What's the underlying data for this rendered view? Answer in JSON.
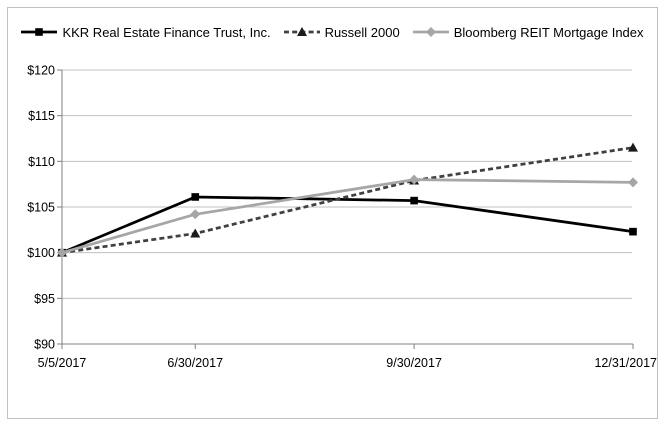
{
  "chart_data": {
    "type": "line",
    "title": "",
    "xlabel": "",
    "ylabel": "",
    "x_categories": [
      "5/5/2017",
      "6/30/2017",
      "9/30/2017",
      "12/31/2017"
    ],
    "x_day_offsets": [
      0,
      56,
      148,
      240
    ],
    "y_axis": {
      "min": 90,
      "max": 120,
      "step": 5,
      "prefix": "$"
    },
    "y_tick_labels": [
      "$90",
      "$95",
      "$100",
      "$105",
      "$110",
      "$115",
      "$120"
    ],
    "grid": true,
    "legend_position": "top",
    "series": [
      {
        "name": "KKR Real Estate Finance Trust, Inc.",
        "values": [
          100,
          106.1,
          105.7,
          102.3
        ],
        "color": "#000000",
        "marker_color": "#000000",
        "dash": "",
        "marker": "square"
      },
      {
        "name": "Russell 2000",
        "values": [
          100,
          102.1,
          107.9,
          111.5
        ],
        "color": "#404040",
        "marker_color": "#1a1a1a",
        "dash": "5 3.2",
        "marker": "triangle"
      },
      {
        "name": "Bloomberg REIT Mortgage Index",
        "values": [
          100,
          104.2,
          108.0,
          107.7
        ],
        "color": "#a6a6a6",
        "marker_color": "#a6a6a6",
        "dash": "",
        "marker": "diamond"
      }
    ],
    "colors": {
      "background": "#ffffff",
      "frame_border": "#c0c0c0",
      "gridline": "#c0c0c0",
      "axis": "#808080",
      "tick": "#808080",
      "label_text": "#000000"
    }
  }
}
